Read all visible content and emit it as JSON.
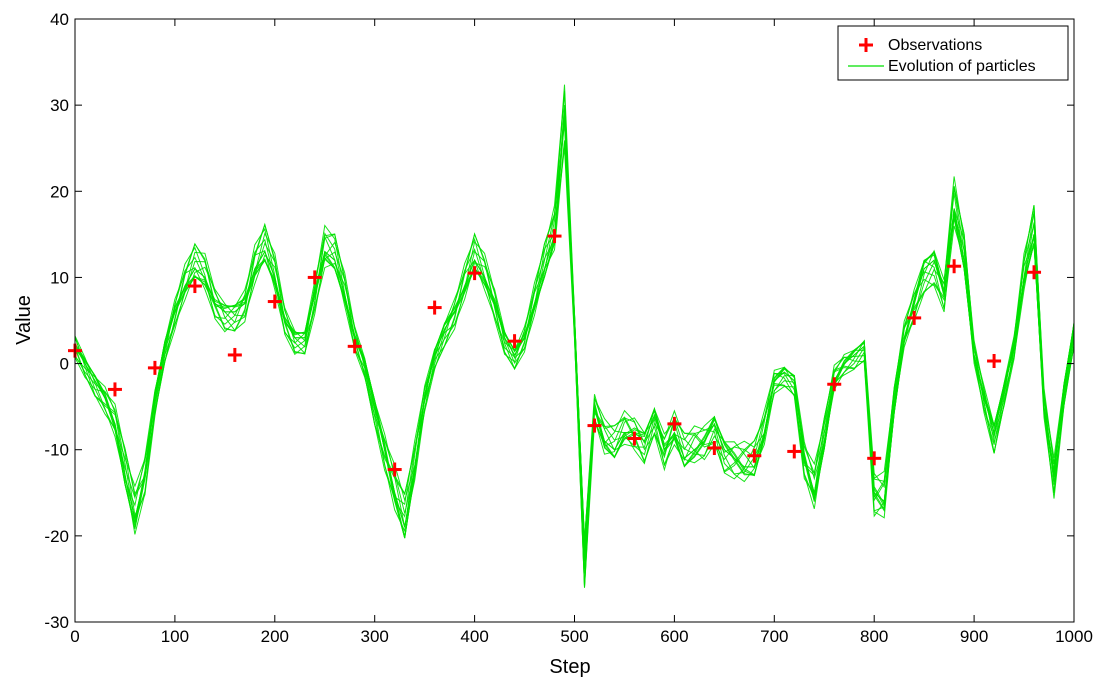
{
  "chart_data": {
    "type": "line",
    "title": "",
    "xlabel": "Step",
    "ylabel": "Value",
    "xlim": [
      0,
      1000
    ],
    "ylim": [
      -30,
      40
    ],
    "xticks": [
      0,
      100,
      200,
      300,
      400,
      500,
      600,
      700,
      800,
      900,
      1000
    ],
    "yticks": [
      -30,
      -20,
      -10,
      0,
      10,
      20,
      30,
      40
    ],
    "grid": false,
    "legend_position": "top-right",
    "legend": [
      {
        "label": "Observations",
        "marker": "plus",
        "color": "#ff0000"
      },
      {
        "label": "Evolution of particles",
        "marker": "line",
        "color": "#00e000"
      }
    ],
    "series": [
      {
        "name": "Observations",
        "kind": "scatter",
        "color": "#ff0000",
        "x": [
          0,
          40,
          80,
          120,
          160,
          200,
          240,
          280,
          320,
          360,
          400,
          440,
          480,
          520,
          560,
          600,
          640,
          680,
          720,
          760,
          800,
          840,
          880,
          920,
          960
        ],
        "y": [
          1.5,
          -3,
          -0.5,
          9,
          1,
          7.2,
          10,
          2,
          -12.3,
          6.5,
          10.5,
          2.6,
          14.8,
          -7.2,
          -8.7,
          -7,
          -9.8,
          -10.7,
          -10.2,
          -2.4,
          -11,
          5.3,
          11.3,
          0.3,
          10.6
        ]
      },
      {
        "name": "Evolution of particles",
        "kind": "line",
        "color": "#00e000",
        "x": [
          0,
          10,
          20,
          30,
          40,
          50,
          60,
          70,
          80,
          90,
          100,
          110,
          120,
          130,
          140,
          150,
          160,
          170,
          180,
          190,
          200,
          210,
          220,
          230,
          240,
          250,
          260,
          270,
          280,
          290,
          300,
          310,
          320,
          330,
          340,
          350,
          360,
          370,
          380,
          390,
          400,
          410,
          420,
          430,
          440,
          450,
          460,
          470,
          480,
          490,
          500,
          510,
          520,
          530,
          540,
          550,
          560,
          570,
          580,
          590,
          600,
          610,
          620,
          630,
          640,
          650,
          660,
          670,
          680,
          690,
          700,
          710,
          720,
          730,
          740,
          750,
          760,
          770,
          780,
          790,
          800,
          810,
          820,
          830,
          840,
          850,
          860,
          870,
          880,
          890,
          900,
          910,
          920,
          930,
          940,
          950,
          960,
          970,
          980,
          990,
          1000
        ],
        "y": [
          2,
          0,
          -2,
          -4,
          -7,
          -13,
          -18,
          -13,
          -4,
          2,
          6,
          9,
          11,
          10,
          7,
          6,
          6,
          7,
          11,
          13,
          10,
          5,
          3,
          3,
          8,
          13,
          12,
          8,
          3,
          0,
          -5,
          -10,
          -15,
          -19,
          -12,
          -4,
          1,
          4,
          6,
          9,
          12,
          10,
          7,
          3,
          1,
          3,
          7,
          11,
          15,
          29,
          5,
          -22,
          -5,
          -9,
          -10,
          -8,
          -8,
          -9,
          -6,
          -10,
          -8,
          -11,
          -10,
          -9,
          -7,
          -10,
          -11,
          -12,
          -12,
          -8,
          -2,
          -1,
          -2,
          -11,
          -15,
          -9,
          -2,
          0,
          1,
          2,
          -15,
          -16,
          -5,
          3,
          7,
          11,
          12,
          8,
          18,
          12,
          1,
          -4,
          -8,
          -3,
          2,
          10,
          15,
          -5,
          -13,
          -3,
          4
        ]
      }
    ]
  }
}
